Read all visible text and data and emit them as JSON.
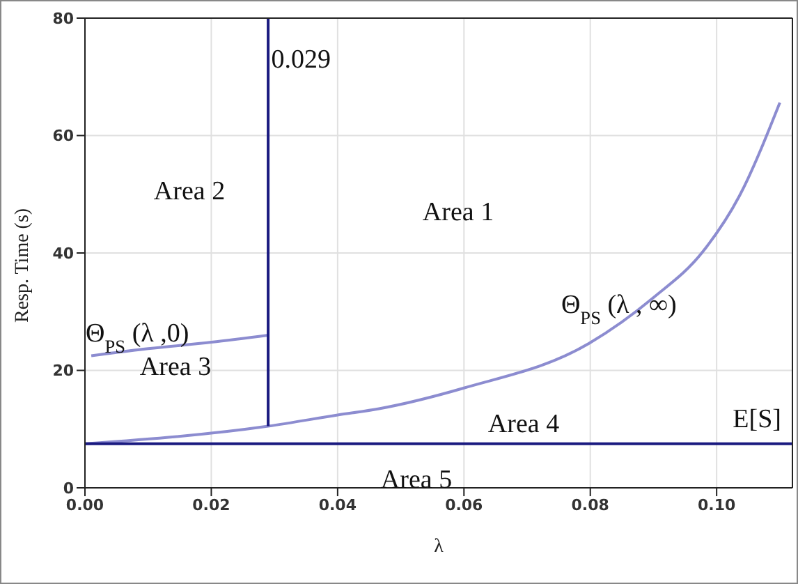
{
  "chart_data": {
    "type": "line",
    "xlabel": "λ",
    "ylabel": "Resp. Time (s)",
    "xlim": [
      0,
      0.112
    ],
    "xticks": [
      {
        "value": 0,
        "label": "0.00"
      },
      {
        "value": 0.02,
        "label": "0.02"
      },
      {
        "value": 0.04,
        "label": "0.04"
      },
      {
        "value": 0.06,
        "label": "0.06"
      },
      {
        "value": 0.08,
        "label": "0.08"
      },
      {
        "value": 0.1,
        "label": "0.10"
      }
    ],
    "ylim": [
      0,
      80
    ],
    "yticks": [
      0,
      20,
      40,
      60,
      80
    ],
    "grid": true,
    "legend": false,
    "marker": "none",
    "line_style": "solid",
    "series": [
      {
        "name": "Θ$_{PS}$(λ ,0)",
        "color": "#8c8cd0",
        "x": [
          0.001,
          0.01,
          0.02,
          0.029
        ],
        "values": [
          22.5,
          23.7,
          24.8,
          26
        ]
      },
      {
        "name": "Θ$_{PS}$(λ , ∞)",
        "color": "#8c8cd0",
        "x": [
          0,
          0.029,
          0.04,
          0.0467,
          0.06,
          0.0798,
          0.09,
          0.0978,
          0.1036,
          0.11
        ],
        "values": [
          7.5,
          10.5,
          12.4,
          13.5,
          17,
          24.6,
          32.4,
          40.2,
          49.7,
          65.6
        ]
      },
      {
        "name": "E[S]",
        "color": "#1a1a80",
        "x": [
          0,
          0.112
        ],
        "values": [
          7.5,
          7.5
        ]
      },
      {
        "color": "#1a1a80",
        "x": [
          0.029,
          0.029
        ],
        "values": [
          10.5,
          80
        ]
      }
    ],
    "annotations": [
      {
        "text": "0.029",
        "x": 0.0295,
        "y": 73
      },
      "Area 1",
      "Area 2",
      "Area 3",
      "Area 4",
      "Area 5"
    ]
  }
}
